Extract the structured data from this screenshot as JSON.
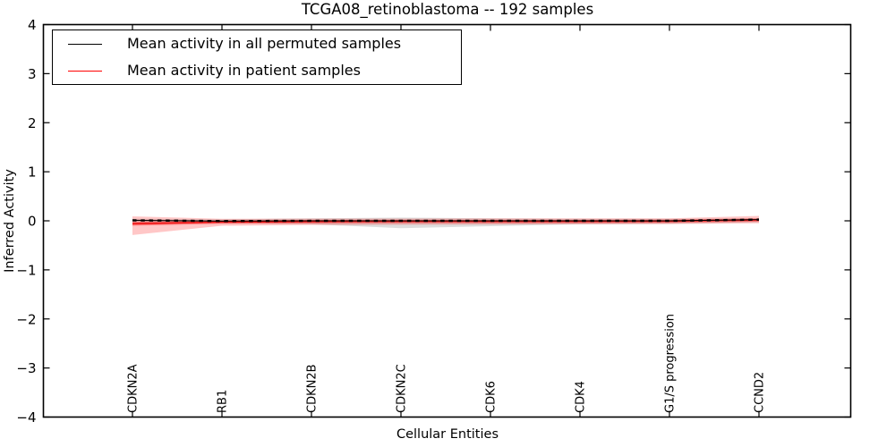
{
  "title": "TCGA08_retinoblastoma -- 192 samples",
  "legend": {
    "items": [
      {
        "label": "Mean activity in all permuted samples",
        "color": "#000000"
      },
      {
        "label": "Mean activity in patient samples",
        "color": "#ff0000"
      }
    ]
  },
  "axes": {
    "xlabel": "Cellular Entities",
    "ylabel": "Inferred Activity",
    "ylim": [
      -4,
      4
    ],
    "ytick_values": [
      4,
      3,
      2,
      1,
      0,
      -1,
      -2,
      -3,
      -4
    ],
    "ytick_labels": [
      "4",
      "3",
      "2",
      "1",
      "0",
      "−1",
      "−2",
      "−3",
      "−4"
    ]
  },
  "chart_data": {
    "type": "line",
    "title": "TCGA08_retinoblastoma -- 192 samples",
    "xlabel": "Cellular Entities",
    "ylabel": "Inferred Activity",
    "ylim": [
      -4,
      4
    ],
    "grid": false,
    "legend_position": "upper left",
    "categories": [
      "CDKN2A",
      "RB1",
      "CDKN2B",
      "CDKN2C",
      "CDK6",
      "CDK4",
      "G1/S progression",
      "CCND2"
    ],
    "series": [
      {
        "name": "Mean activity in all permuted samples",
        "color": "#000000",
        "band_color": "rgba(120,120,120,0.25)",
        "values": [
          0.01,
          -0.005,
          0.0,
          0.0,
          0.0,
          0.0,
          0.0,
          0.025
        ],
        "band_upper": [
          0.04,
          0.03,
          0.05,
          0.065,
          0.05,
          0.04,
          0.04,
          0.05
        ],
        "band_lower": [
          -0.04,
          -0.05,
          -0.07,
          -0.15,
          -0.11,
          -0.07,
          -0.06,
          -0.03
        ]
      },
      {
        "name": "Mean activity in patient samples",
        "color": "#ee1111",
        "band_color": "rgba(255,0,0,0.22)",
        "inner_band_color": "rgba(255,0,0,0.35)",
        "values": [
          -0.06,
          -0.025,
          -0.015,
          -0.01,
          -0.01,
          -0.01,
          -0.005,
          0.02
        ],
        "band_upper": [
          0.09,
          0.04,
          0.045,
          0.045,
          0.05,
          0.05,
          0.05,
          0.1
        ],
        "band_lower": [
          -0.29,
          -0.1,
          -0.085,
          -0.08,
          -0.075,
          -0.07,
          -0.065,
          -0.05
        ],
        "inner_upper": [
          -0.02,
          0.005,
          0.02,
          0.02,
          0.02,
          0.02,
          0.025,
          0.05
        ],
        "inner_lower": [
          -0.1,
          -0.06,
          -0.05,
          -0.045,
          -0.045,
          -0.045,
          -0.04,
          -0.015
        ]
      }
    ]
  }
}
